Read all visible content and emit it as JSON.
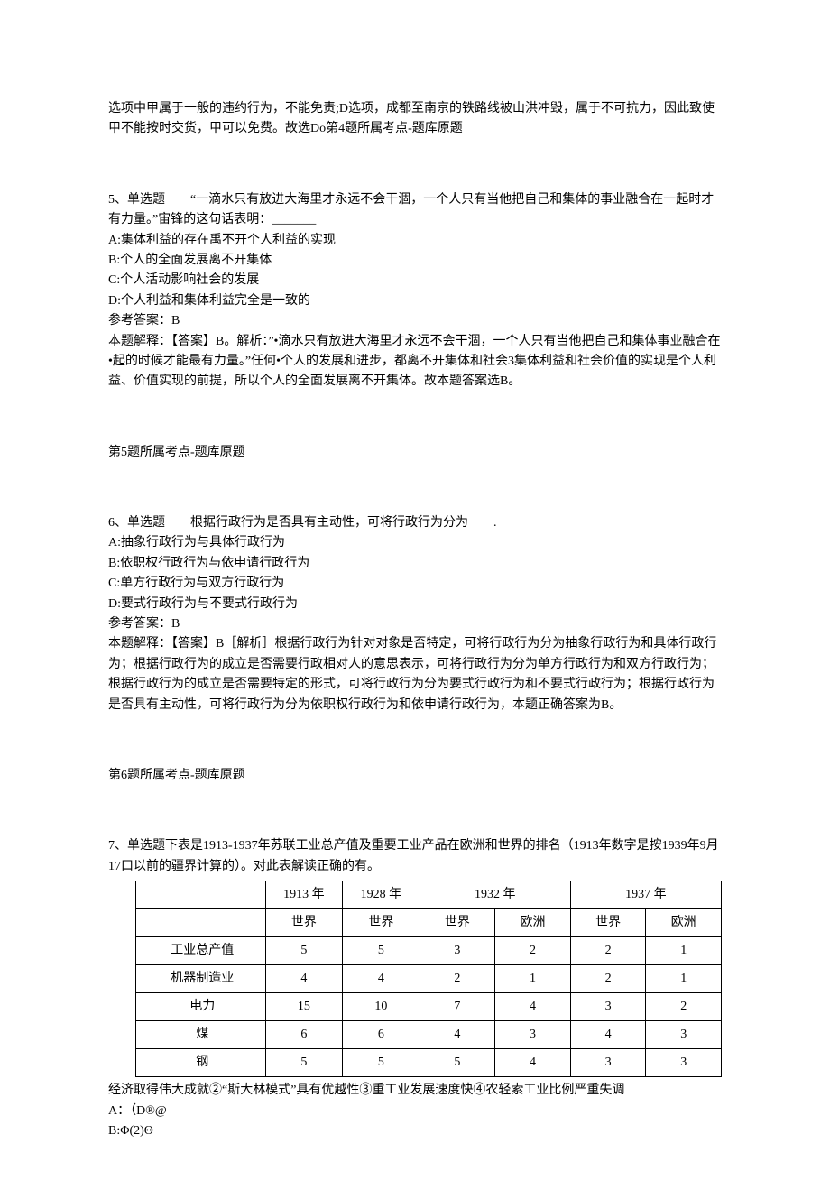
{
  "q4tail": {
    "l1": "选项中甲属于一般的违约行为，不能免责;D选项，成都至南京的铁路线被山洪冲毁，属于不可抗力，因此致使甲不能按时交货，甲可以免费。故选Do第4题所属考点-题库原题"
  },
  "q5": {
    "header": "5、单选题　　“一滴水只有放进大海里才永远不会干涸，一个人只有当他把自己和集体的事业融合在一起时才有力量。”宙锋的这句话表明：_______",
    "a": "A:集体利益的存在禹不开个人利益的实现",
    "b": "B:个人的全面发展离不开集体",
    "c": "C:个人活动影响社会的发展",
    "d": "D:个人利益和集体利益完全是一致的",
    "ans": "参考答案：B",
    "exp": "本题解释：【答案】B。解析：”•滴水只有放进大海里才永远不会干涸，一个人只有当他把自己和集体事业融合在•起的时候才能最有力量。”任何•个人的发展和进步，都离不开集体和社会3集体利益和社会价值的实现是个人利益、价值实现的前提，所以个人的全面发展离不开集体。故本题答案选B。"
  },
  "q5ref": "第5题所属考点-题库原题",
  "q6": {
    "header": "6、单选题　　根据行政行为是否具有主动性，可将行政行为分为　　.",
    "a": "A:抽象行政行为与具体行政行为",
    "b": "B:依职权行政行为与依申请行政行为",
    "c": "C:单方行政行为与双方行政行为",
    "d": "D:要式行政行为与不要式行政行为",
    "ans": "参考答案：B",
    "exp": "本题解释：【答案】B［解析］根据行政行为针对对象是否特定，可将行政行为分为抽象行政行为和具体行政行为；根据行政行为的成立是否需要行政相对人的意思表示，可将行政行为分为单方行政行为和双方行政行为；根据行政行为的成立是否需要特定的形式，可将行政行为分为要式行政行为和不要式行政行为；根据行政行为是否具有主动性，可将行政行为分为依职权行政行为和依申请行政行为，本题正确答案为B。"
  },
  "q6ref": "第6题所属考点-题库原题",
  "q7": {
    "header": "7、单选题下表是1913-1937年苏联工业总产值及重要工业产品在欧洲和世界的排名（1913年数字是按1939年9月17口以前的疆界计算的）。对此表解读正确的有。",
    "table": {
      "h1": {
        "c0": "",
        "c1": "1913 年",
        "c2": "1928 年",
        "c3": "1932 年",
        "c4": "1937 年"
      },
      "h2": {
        "c0": "",
        "c1": "世界",
        "c2": "世界",
        "c3": "世界",
        "c4": "欧洲",
        "c5": "世界",
        "c6": "欧洲"
      },
      "r1": {
        "c0": "工业总产值",
        "c1": "5",
        "c2": "5",
        "c3": "3",
        "c4": "2",
        "c5": "2",
        "c6": "1"
      },
      "r2": {
        "c0": "机器制造业",
        "c1": "4",
        "c2": "4",
        "c3": "2",
        "c4": "1",
        "c5": "2",
        "c6": "1"
      },
      "r3": {
        "c0": "电力",
        "c1": "15",
        "c2": "10",
        "c3": "7",
        "c4": "4",
        "c5": "3",
        "c6": "2"
      },
      "r4": {
        "c0": "煤",
        "c1": "6",
        "c2": "6",
        "c3": "4",
        "c4": "3",
        "c5": "4",
        "c6": "3"
      },
      "r5": {
        "c0": "钢",
        "c1": "5",
        "c2": "5",
        "c3": "5",
        "c4": "4",
        "c5": "3",
        "c6": "3"
      }
    },
    "after": "经济取得伟大成就②“斯大林模式”具有优越性③重工业发展速度快④农轻索工业比例严重失调",
    "a": "A：（D®@",
    "b": "B:Φ(2)Θ"
  }
}
